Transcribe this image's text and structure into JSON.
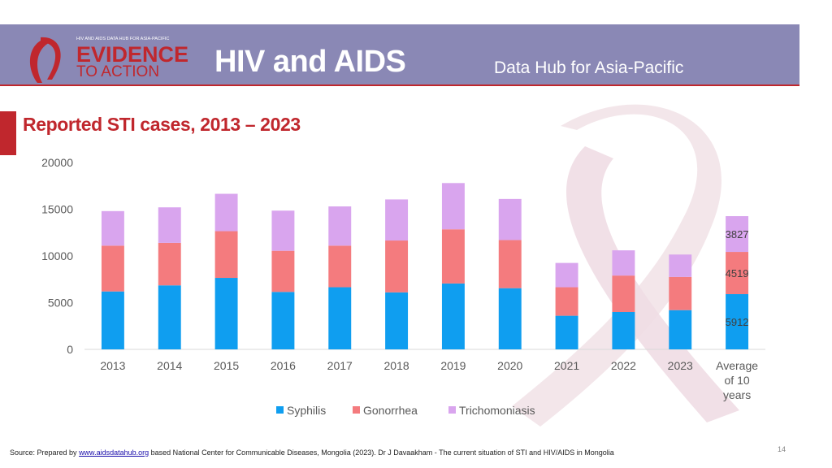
{
  "header": {
    "logo_top": "HIV AND AIDS DATA HUB FOR ASIA-PACIFIC",
    "logo_line1": "EVIDENCE",
    "logo_line2": "TO ACTION",
    "title": "HIV and AIDS",
    "subtitle": "Data Hub for Asia-Pacific"
  },
  "slide": {
    "title": "Reported STI cases, 2013 – 2023"
  },
  "colors": {
    "syphilis": "#0f9ef0",
    "gonorrhea": "#f47b7e",
    "trichomoniasis": "#d9a5ee",
    "accent": "#c0272d",
    "header": "#8a88b5"
  },
  "chart_data": {
    "type": "bar",
    "stacked": true,
    "title": "",
    "xlabel": "",
    "ylabel": "",
    "ylim": [
      0,
      20000
    ],
    "yticks": [
      0,
      5000,
      10000,
      15000,
      20000
    ],
    "categories": [
      "2013",
      "2014",
      "2015",
      "2016",
      "2017",
      "2018",
      "2019",
      "2020",
      "2021",
      "2022",
      "2023",
      "Average of 10 years"
    ],
    "series": [
      {
        "name": "Syphilis",
        "values": [
          6200,
          6850,
          7650,
          6150,
          6650,
          6100,
          7050,
          6550,
          3600,
          4000,
          4200,
          5912
        ]
      },
      {
        "name": "Gonorrhea",
        "values": [
          4900,
          4550,
          5000,
          4400,
          4450,
          5550,
          5800,
          5150,
          3050,
          3900,
          3550,
          4519
        ]
      },
      {
        "name": "Trichomoniasis",
        "values": [
          3700,
          3800,
          4000,
          4300,
          4200,
          4400,
          4950,
          4400,
          2600,
          2700,
          2400,
          3827
        ]
      }
    ],
    "data_labels": {
      "category": "Average of 10 years",
      "values": [
        "5912",
        "4519",
        "3827"
      ]
    },
    "legend": {
      "position": "bottom",
      "entries": [
        "Syphilis",
        "Gonorrhea",
        "Trichomoniasis"
      ]
    },
    "grid": false
  },
  "footer": {
    "source_prefix": "Source: Prepared by",
    "source_link": "www.aidsdatahub.org",
    "source_suffix": " based National Center for Communicable Diseases, Mongolia (2023). Dr J Davaakham - The current situation of STI and HIV/AIDS in Mongolia",
    "page_number": "14"
  }
}
